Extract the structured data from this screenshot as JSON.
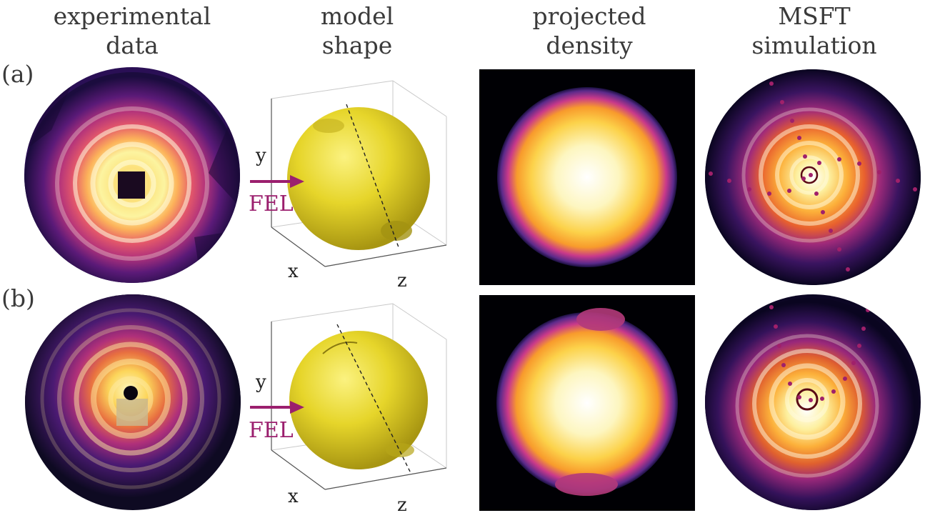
{
  "columns": {
    "experimental": {
      "line1": "experimental",
      "line2": "data"
    },
    "model": {
      "line1": "model",
      "line2": "shape"
    },
    "projected": {
      "line1": "projected",
      "line2": "density"
    },
    "msft": {
      "line1": "MSFT",
      "line2": "simulation"
    }
  },
  "rows": {
    "a": {
      "label": "(a)"
    },
    "b": {
      "label": "(b)"
    }
  },
  "model_axes": {
    "x": "x",
    "y": "y",
    "z": "z"
  },
  "beam_label": "FEL",
  "colors": {
    "accent": "#9b1f6e",
    "sphere": "#e6d52a",
    "colormap": [
      "#000004",
      "#3b0f70",
      "#8c2981",
      "#de4968",
      "#fe9f6d",
      "#fcfdbf"
    ]
  }
}
